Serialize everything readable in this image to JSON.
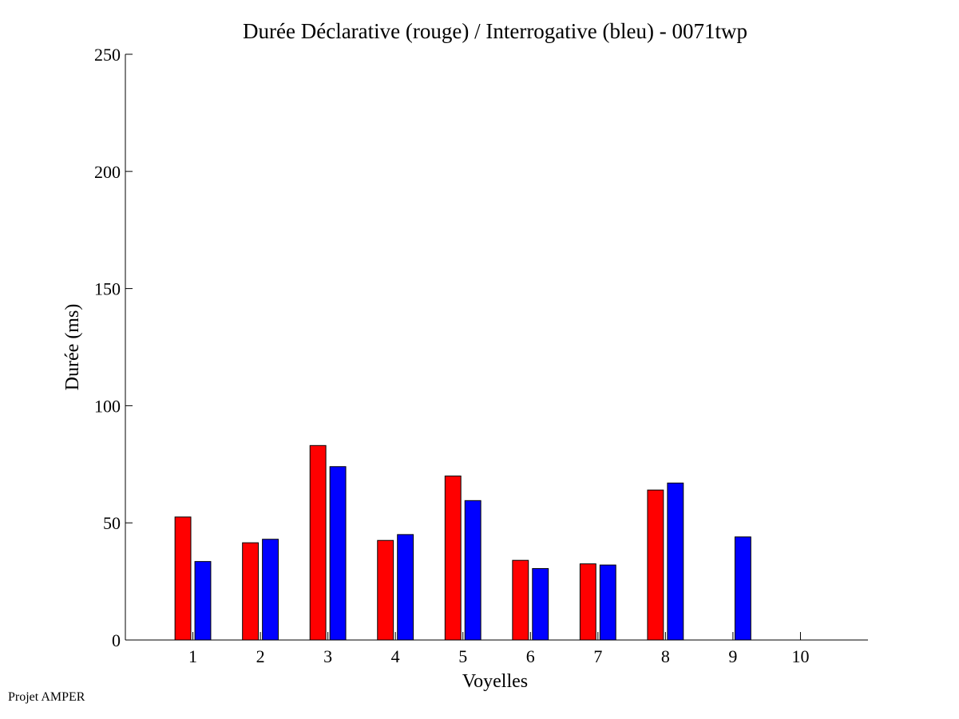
{
  "chart_data": {
    "type": "bar",
    "title": "Durée Déclarative (rouge) / Interrogative (bleu) - 0071twp",
    "xlabel": "Voyelles",
    "ylabel": "Durée (ms)",
    "categories": [
      "1",
      "2",
      "3",
      "4",
      "5",
      "6",
      "7",
      "8",
      "9",
      "10"
    ],
    "xlim": [
      0,
      11
    ],
    "ylim": [
      0,
      250
    ],
    "yticks": [
      "0",
      "50",
      "100",
      "150",
      "200",
      "250"
    ],
    "grid": false,
    "legend": "none",
    "series": [
      {
        "color": "#ff0000",
        "values": [
          52.5,
          41.5,
          83,
          42.5,
          70,
          34,
          32.5,
          64,
          null,
          null
        ]
      },
      {
        "color": "#0000ff",
        "values": [
          33.5,
          43,
          74,
          45,
          59.5,
          30.5,
          32,
          67,
          44,
          null
        ]
      }
    ]
  },
  "footer": {
    "credit": "Projet AMPER"
  }
}
